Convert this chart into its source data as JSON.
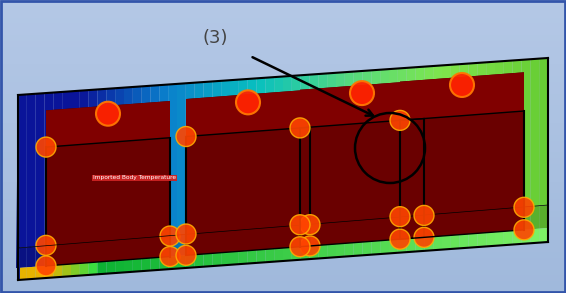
{
  "figure_size": [
    5.66,
    2.93
  ],
  "dpi": 100,
  "annotation_label": "(3)",
  "imported_body_label": "Imported Body Temperature",
  "bg_top": "#b0c4e0",
  "bg_bottom": "#8aaac8",
  "border_color": "#3355aa",
  "box_base_color_left": "#0a1a8a",
  "box_base_color_right": "#22cc44",
  "back_wall_color_left": "#0a1a8a",
  "back_wall_color_right": "#22cc44",
  "fin_main_color": "#7a0000",
  "fin_edge_color": "#ff2200",
  "fin_outline_color": "#000000"
}
